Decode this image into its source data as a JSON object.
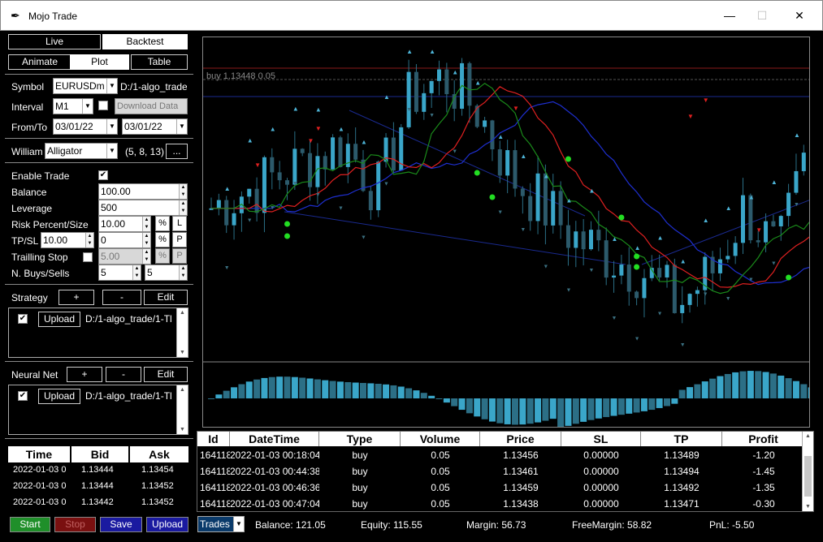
{
  "window": {
    "title": "Mojo Trade",
    "icon": "feather-icon",
    "minimize": "—",
    "maximize": "☐",
    "close": "✕"
  },
  "mode_tabs": {
    "live": "Live",
    "backtest": "Backtest"
  },
  "view_tabs": {
    "animate": "Animate",
    "plot": "Plot",
    "table": "Table"
  },
  "symbol": {
    "label": "Symbol",
    "value": "EURUSDm",
    "path": "D:/1-algo_trade"
  },
  "interval": {
    "label": "Interval",
    "value": "M1",
    "download": "Download Data"
  },
  "fromto": {
    "label": "From/To",
    "from": "03/01/22",
    "to": "03/01/22"
  },
  "indicator": {
    "label": "William",
    "value": "Alligator",
    "params": "(5, 8, 13)",
    "more": "..."
  },
  "trade": {
    "enable_label": "Enable Trade",
    "balance_label": "Balance",
    "balance": "100.00",
    "leverage_label": "Leverage",
    "leverage": "500",
    "risk_label": "Risk Percent/Size",
    "risk": "10.00",
    "risk_pct": "%",
    "risk_l": "L",
    "tpsl_label": "TP/SL",
    "tp": "10.00",
    "sl": "0",
    "tpsl_pct": "%",
    "tpsl_p": "P",
    "trailing_label": "Trailling Stop",
    "trailing": "5.00",
    "trailing_pct": "%",
    "trailing_p": "P",
    "nbuys_label": "N. Buys/Sells",
    "nbuys": "5",
    "nsells": "5"
  },
  "strategy": {
    "label": "Strategy",
    "add": "+",
    "remove": "-",
    "edit": "Edit",
    "upload": "Upload",
    "path": "D:/1-algo_trade/1-Tl"
  },
  "neural": {
    "label": "Neural Net",
    "add": "+",
    "remove": "-",
    "edit": "Edit",
    "upload": "Upload",
    "path": "D:/1-algo_trade/1-Tl"
  },
  "ticks": {
    "headers": [
      "Time",
      "Bid",
      "Ask"
    ],
    "rows": [
      [
        "2022-01-03 0",
        "1.13444",
        "1.13454"
      ],
      [
        "2022-01-03 0",
        "1.13444",
        "1.13452"
      ],
      [
        "2022-01-03 0",
        "1.13442",
        "1.13452"
      ]
    ]
  },
  "actions": {
    "start": "Start",
    "stop": "Stop",
    "save": "Save",
    "upload": "Upload"
  },
  "chart_data": {
    "type": "candlestick",
    "annotation": "buy 1.13448 0.05",
    "indicator": "Alligator",
    "candles_close_trend": [
      1.1342,
      1.1343,
      1.1344,
      1.1345,
      1.1346,
      1.1343,
      1.1349,
      1.135,
      1.1348,
      1.1344,
      1.1342,
      1.134,
      1.1339,
      1.1338,
      1.1336,
      1.1338,
      1.1342,
      1.1339,
      1.1346
    ],
    "colors": {
      "candles": "#3aa6c9",
      "jaw": "#1e2fd0",
      "teeth": "#e02020",
      "lips": "#1a8a1a",
      "up_marker": "#4db3d6",
      "down_marker": "#e02020",
      "signal": "#22dd22"
    }
  },
  "trades": {
    "headers": [
      "Id",
      "DateTime",
      "Type",
      "Volume",
      "Price",
      "SL",
      "TP",
      "Profit"
    ],
    "rows": [
      [
        "164118",
        "2022-01-03 00:18:04",
        "buy",
        "0.05",
        "1.13456",
        "0.00000",
        "1.13489",
        "-1.20"
      ],
      [
        "164118",
        "2022-01-03 00:44:38",
        "buy",
        "0.05",
        "1.13461",
        "0.00000",
        "1.13494",
        "-1.45"
      ],
      [
        "164118",
        "2022-01-03 00:46:36",
        "buy",
        "0.05",
        "1.13459",
        "0.00000",
        "1.13492",
        "-1.35"
      ],
      [
        "164118",
        "2022-01-03 00:47:04",
        "buy",
        "0.05",
        "1.13438",
        "0.00000",
        "1.13471",
        "-0.30"
      ]
    ]
  },
  "status": {
    "view": "Trades",
    "balance": "Balance: 121.05",
    "equity": "Equity: 115.55",
    "margin": "Margin: 56.73",
    "freemargin": "FreeMargin: 58.82",
    "pnl": "PnL: -5.50"
  }
}
